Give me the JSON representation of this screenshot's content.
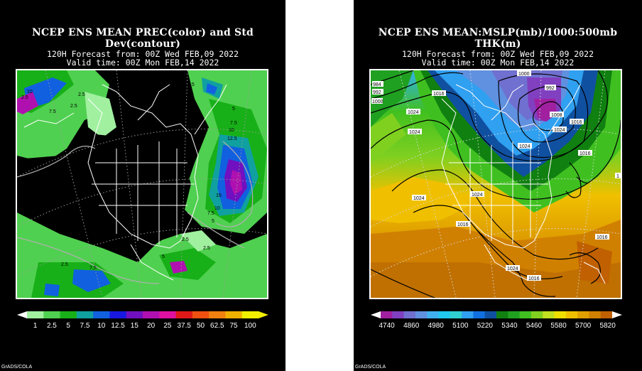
{
  "panels": [
    {
      "title": "NCEP ENS MEAN PREC(color) and Std Dev(contour)",
      "subtitle1": "120H Forecast from: 00Z Wed FEB,09 2022",
      "subtitle2": "Valid time: 00Z Mon FEB,14 2022",
      "credit": "GrADS/COLA",
      "legend": {
        "labels": [
          "1",
          "2.5",
          "5",
          "7.5",
          "10",
          "12.5",
          "15",
          "20",
          "25",
          "37.5",
          "50",
          "62.5",
          "75",
          "100"
        ],
        "colors": [
          "#a0f0a0",
          "#50d050",
          "#18b018",
          "#10a0a0",
          "#1060e0",
          "#1818e0",
          "#7010c0",
          "#b010b0",
          "#e010a0",
          "#e01818",
          "#f05010",
          "#f08010",
          "#f0b000",
          "#f0f000"
        ]
      },
      "contour_labels": [
        "2.5",
        "10",
        "7.5",
        "2.5",
        "2.5",
        "2.5",
        "5",
        "7.5",
        "10",
        "12.5",
        "15",
        "10",
        "7.5",
        "5",
        "2.5",
        "2.5",
        "5",
        "7.5",
        "2.5"
      ]
    },
    {
      "title": "NCEP ENS MEAN:MSLP(mb)/1000:500mb THK(m)",
      "subtitle1": "120H Forecast from: 00Z Wed FEB,09 2022",
      "subtitle2": "Valid time: 00Z Mon FEB,14 2022",
      "credit": "GrADS/COLA",
      "legend": {
        "labels": [
          "4740",
          "4860",
          "4980",
          "5100",
          "5220",
          "5340",
          "5460",
          "5580",
          "5700",
          "5820"
        ],
        "colors": [
          "#a020a0",
          "#8040c0",
          "#7070d0",
          "#6090e0",
          "#40b0f0",
          "#20c8f0",
          "#30d0d0",
          "#30a0f0",
          "#1070e0",
          "#1050a0",
          "#108010",
          "#20a020",
          "#40c020",
          "#80d020",
          "#c0e020",
          "#f0e000",
          "#f0c000",
          "#e0a000",
          "#d08000",
          "#c06000"
        ]
      },
      "contour_labels": [
        "984",
        "992",
        "1000",
        "1024",
        "1016",
        "1000",
        "992",
        "1008",
        "1016",
        "1024",
        "1016",
        "1024",
        "1024",
        "1024",
        "1016",
        "1024",
        "1016",
        "1016",
        "1024",
        "1016",
        "1"
      ]
    }
  ]
}
